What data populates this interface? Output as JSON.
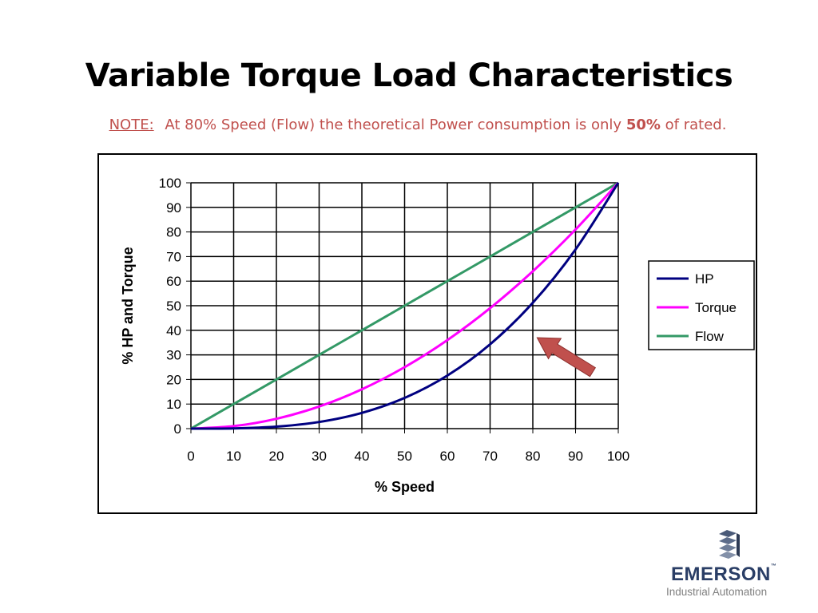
{
  "slide": {
    "title": "Variable Torque Load Characteristics",
    "note_label": "NOTE:",
    "note_text_before": "At 80% Speed (Flow) the theoretical Power consumption is only",
    "note_bold": "50%",
    "note_text_after": "of rated."
  },
  "logo": {
    "name": "EMERSON",
    "trademark": "™",
    "subtitle": "Industrial Automation",
    "icon": "emerson-stacked-mark-icon"
  },
  "colors": {
    "note": "#c0504d",
    "hp": "#000080",
    "torque": "#ff00ff",
    "flow": "#339966",
    "arrow": "#c0504d"
  },
  "chart_data": {
    "type": "line",
    "title": "",
    "xlabel": "% Speed",
    "ylabel": "% HP and Torque",
    "xlim": [
      0,
      100
    ],
    "ylim": [
      0,
      100
    ],
    "xticks": [
      0,
      10,
      20,
      30,
      40,
      50,
      60,
      70,
      80,
      90,
      100
    ],
    "yticks": [
      0,
      10,
      20,
      30,
      40,
      50,
      60,
      70,
      80,
      90,
      100
    ],
    "grid": true,
    "legend_position": "right",
    "x": [
      0,
      10,
      20,
      30,
      40,
      50,
      60,
      70,
      80,
      90,
      100
    ],
    "series": [
      {
        "name": "HP",
        "color": "#000080",
        "values": [
          0,
          0.1,
          0.8,
          2.7,
          6.4,
          12.5,
          21.6,
          34.3,
          51.2,
          72.9,
          100
        ]
      },
      {
        "name": "Torque",
        "color": "#ff00ff",
        "values": [
          0,
          1,
          4,
          9,
          16,
          25,
          36,
          49,
          64,
          81,
          100
        ]
      },
      {
        "name": "Flow",
        "color": "#339966",
        "values": [
          0,
          10,
          20,
          30,
          40,
          50,
          60,
          70,
          80,
          90,
          100
        ]
      }
    ],
    "annotation": {
      "type": "arrow",
      "description": "arrow pointing to HP curve",
      "tail": [
        94,
        23
      ],
      "head": [
        81,
        37
      ]
    }
  }
}
